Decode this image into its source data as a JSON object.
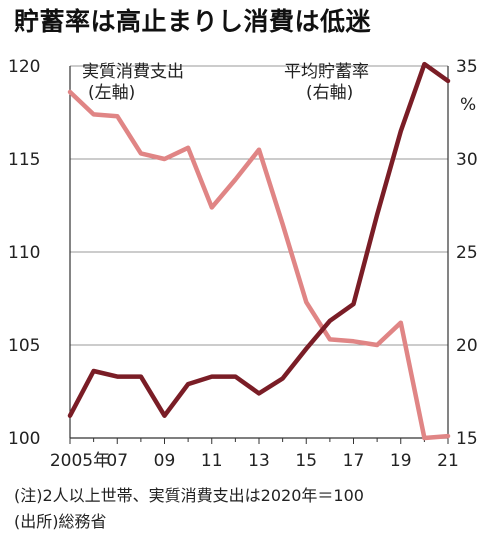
{
  "title": "貯蓄率は高止まりし消費は低迷",
  "notes": {
    "note1": "(注)2人以上世帯、実質消費支出は2020年＝100",
    "source": "(出所)総務省"
  },
  "chart_data": {
    "type": "line",
    "title": "貯蓄率は高止まりし消費は低迷",
    "x": [
      2005,
      2006,
      2007,
      2008,
      2009,
      2010,
      2011,
      2012,
      2013,
      2014,
      2015,
      2016,
      2017,
      2018,
      2019,
      2020,
      2021
    ],
    "xtick_labels": [
      "2005年",
      "07",
      "09",
      "11",
      "13",
      "15",
      "17",
      "19",
      "21"
    ],
    "xtick_values": [
      2005,
      2007,
      2009,
      2011,
      2013,
      2015,
      2017,
      2019,
      2021
    ],
    "y_left": {
      "ticks": [
        100,
        105,
        110,
        115,
        120
      ],
      "ylim": [
        100,
        120
      ]
    },
    "y_right": {
      "ticks": [
        15,
        20,
        25,
        30,
        35
      ],
      "ylim": [
        15,
        35
      ],
      "unit": "%"
    },
    "series": [
      {
        "name": "実質消費支出",
        "axis_label": "(左軸)",
        "axis": "left",
        "color": "#e08585",
        "values": [
          118.6,
          117.4,
          117.3,
          115.3,
          115.0,
          115.6,
          112.4,
          113.9,
          115.5,
          111.5,
          107.3,
          105.3,
          105.2,
          105.0,
          106.2,
          100.0,
          100.1
        ]
      },
      {
        "name": "平均貯蓄率",
        "axis_label": "(右軸)",
        "axis": "right",
        "color": "#7a1d26",
        "values": [
          16.2,
          18.6,
          18.3,
          18.3,
          16.2,
          17.9,
          18.3,
          18.3,
          17.4,
          18.2,
          19.8,
          21.3,
          22.2,
          27.0,
          31.5,
          35.1,
          34.2
        ]
      }
    ]
  }
}
